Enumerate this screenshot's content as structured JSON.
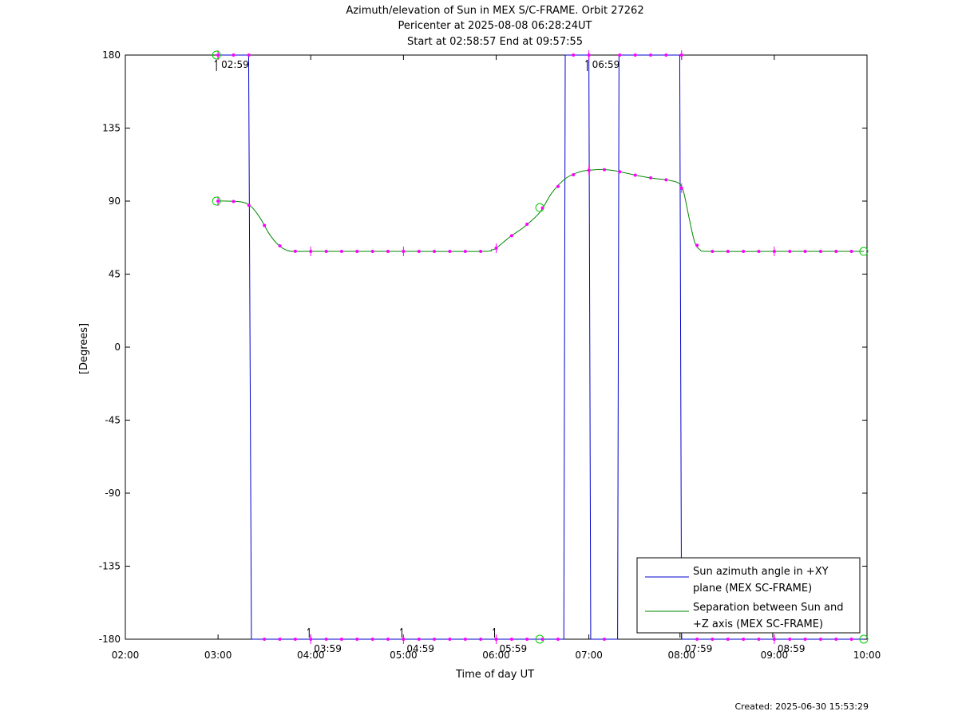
{
  "chart_data": {
    "type": "line",
    "title_lines": [
      "Azimuth/elevation of Sun in MEX S/C-FRAME.  Orbit 27262",
      "Pericenter at 2025-08-08 06:28:24UT",
      "Start at 02:58:57 End at 09:57:55"
    ],
    "xlabel": "Time of day UT",
    "ylabel": "[Degrees]",
    "xlim": [
      2.0,
      10.0
    ],
    "ylim": [
      -180,
      180
    ],
    "x_ticks": [
      {
        "v": 2,
        "label": "02:00"
      },
      {
        "v": 3,
        "label": "03:00"
      },
      {
        "v": 4,
        "label": "04:00"
      },
      {
        "v": 5,
        "label": "05:00"
      },
      {
        "v": 6,
        "label": "06:00"
      },
      {
        "v": 7,
        "label": "07:00"
      },
      {
        "v": 8,
        "label": "08:00"
      },
      {
        "v": 9,
        "label": "09:00"
      },
      {
        "v": 10,
        "label": "10:00"
      }
    ],
    "y_ticks": [
      {
        "v": 180,
        "label": "180"
      },
      {
        "v": 135,
        "label": "135"
      },
      {
        "v": 90,
        "label": "90"
      },
      {
        "v": 45,
        "label": "45"
      },
      {
        "v": 0,
        "label": "0"
      },
      {
        "v": -45,
        "label": "-45"
      },
      {
        "v": -90,
        "label": "-90"
      },
      {
        "v": -135,
        "label": "-135"
      },
      {
        "v": -180,
        "label": "-180"
      }
    ],
    "series": [
      {
        "name": "Sun azimuth angle in +XY plane (MEX SC-FRAME)",
        "legend_lines": [
          "Sun azimuth angle in +XY",
          "plane (MEX SC-FRAME)"
        ],
        "color": "#0000cc",
        "x": [
          2.983,
          3.33,
          3.36,
          6.73,
          6.745,
          7.0,
          7.02,
          7.31,
          7.325,
          7.98,
          8.0,
          9.965
        ],
        "y": [
          180,
          180,
          -180,
          -180,
          180,
          180,
          -180,
          -180,
          180,
          180,
          -180,
          -180
        ]
      },
      {
        "name": "Separation between Sun and +Z axis (MEX SC-FRAME)",
        "legend_lines": [
          "Separation between Sun and",
          "+Z axis (MEX SC-FRAME)"
        ],
        "color": "#008800",
        "x": [
          2.983,
          3.1,
          3.25,
          3.35,
          3.45,
          3.55,
          3.65,
          3.75,
          3.85,
          4.0,
          5.0,
          5.85,
          5.95,
          6.0,
          6.15,
          6.3,
          6.47,
          6.6,
          6.75,
          6.9,
          7.0,
          7.15,
          7.3,
          7.5,
          7.7,
          7.85,
          7.97,
          8.02,
          8.08,
          8.14,
          8.2,
          8.3,
          9.0,
          9.965
        ],
        "y": [
          90,
          90,
          89.5,
          87,
          80,
          70,
          63,
          59.5,
          59,
          59,
          59,
          59,
          60,
          61,
          68,
          74,
          83,
          95,
          104,
          108,
          109,
          109.5,
          108.5,
          106,
          104,
          103,
          101,
          96,
          80,
          65,
          60,
          59,
          59,
          59
        ]
      }
    ],
    "sample_dots": {
      "color": "#ff00ff",
      "times": [
        3.0,
        3.167,
        3.333,
        3.5,
        3.667,
        3.833,
        4.0,
        4.167,
        4.333,
        4.5,
        4.667,
        4.833,
        5.0,
        5.167,
        5.333,
        5.5,
        5.667,
        5.833,
        6.0,
        6.167,
        6.333,
        6.5,
        6.667,
        6.833,
        7.0,
        7.167,
        7.333,
        7.5,
        7.667,
        7.833,
        8.0,
        8.167,
        8.333,
        8.5,
        8.667,
        8.833,
        9.0,
        9.167,
        9.333,
        9.5,
        9.667,
        9.833
      ]
    },
    "hour_ticks": [
      3.0,
      4.0,
      5.0,
      6.0,
      7.0,
      8.0,
      9.0
    ],
    "markers": [
      {
        "x": 2.983,
        "y": 180,
        "color": "#00cc00"
      },
      {
        "x": 2.983,
        "y": 90,
        "color": "#00cc00"
      },
      {
        "x": 6.47,
        "y": 86,
        "color": "#00cc00"
      },
      {
        "x": 6.47,
        "y": -180,
        "color": "#00cc00"
      },
      {
        "x": 9.965,
        "y": 59,
        "color": "#00cc00"
      },
      {
        "x": 9.965,
        "y": -180,
        "color": "#00cc00"
      }
    ],
    "annotations": [
      {
        "x": 2.983,
        "y": 180,
        "label": "02:59"
      },
      {
        "x": 3.983,
        "y": -180,
        "label": "03:59"
      },
      {
        "x": 4.983,
        "y": -180,
        "label": "04:59"
      },
      {
        "x": 5.983,
        "y": -180,
        "label": "05:59"
      },
      {
        "x": 6.983,
        "y": 180,
        "label": "06:59"
      },
      {
        "x": 7.983,
        "y": -180,
        "label": "07:59"
      },
      {
        "x": 8.983,
        "y": -180,
        "label": "08:59"
      }
    ],
    "legend_placement": "bottom-right",
    "grid": false
  },
  "footer": "Created: 2025-06-30 15:53:29"
}
